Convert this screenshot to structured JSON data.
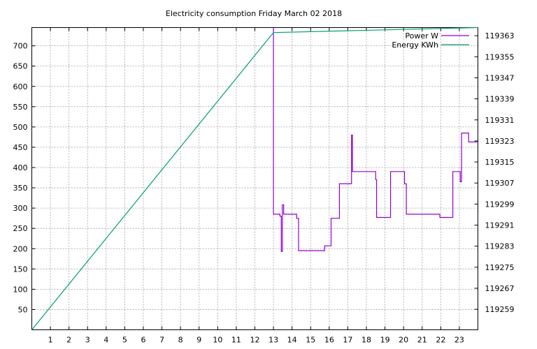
{
  "chart_data": {
    "type": "line",
    "title": "Electricity consumption Friday March 02 2018",
    "xlabel": "",
    "ylabel": "",
    "y2label": "",
    "grid": true,
    "legend_position": "top-right",
    "xlim": [
      0,
      24
    ],
    "ylim": [
      0,
      745
    ],
    "y2lim": [
      119251.2,
      119366.1
    ],
    "x_ticks": [
      1,
      2,
      3,
      4,
      5,
      6,
      7,
      8,
      9,
      10,
      11,
      12,
      13,
      14,
      15,
      16,
      17,
      18,
      19,
      20,
      21,
      22,
      23
    ],
    "y_ticks": [
      50,
      100,
      150,
      200,
      250,
      300,
      350,
      400,
      450,
      500,
      550,
      600,
      650,
      700
    ],
    "y2_ticks": [
      119259,
      119267,
      119275,
      119283,
      119291,
      119299,
      119307,
      119315,
      119323,
      119331,
      119339,
      119347,
      119355,
      119363
    ],
    "series": [
      {
        "name": "Power W",
        "axis": "y",
        "color": "#9400d3",
        "x": [
          13.0,
          13.0,
          13.0,
          13.0,
          13.35,
          13.35,
          13.42,
          13.42,
          13.48,
          13.48,
          13.55,
          13.55,
          14.25,
          14.25,
          14.35,
          14.35,
          15.75,
          15.75,
          16.1,
          16.1,
          16.45,
          16.45,
          16.55,
          16.55,
          17.2,
          17.2,
          17.25,
          17.25,
          18.5,
          18.5,
          18.55,
          18.55,
          19.3,
          19.3,
          20.05,
          20.05,
          20.15,
          20.15,
          21.95,
          21.95,
          22.65,
          22.65,
          23.05,
          23.05,
          23.12,
          23.12,
          23.5,
          23.5,
          24.0
        ],
        "y": [
          745,
          710,
          745,
          285,
          285,
          280,
          280,
          193,
          193,
          308,
          308,
          285,
          285,
          275,
          275,
          195,
          195,
          207,
          207,
          275,
          275,
          275,
          275,
          360,
          360,
          480,
          480,
          390,
          390,
          370,
          370,
          277,
          277,
          390,
          390,
          360,
          360,
          285,
          285,
          277,
          277,
          390,
          390,
          365,
          365,
          485,
          485,
          463,
          463
        ]
      },
      {
        "name": "Energy KWh",
        "axis": "y2",
        "color": "#009e73",
        "x": [
          0,
          13.0,
          24.0
        ],
        "y": [
          119251.2,
          119364.2,
          119366.1
        ]
      }
    ]
  }
}
